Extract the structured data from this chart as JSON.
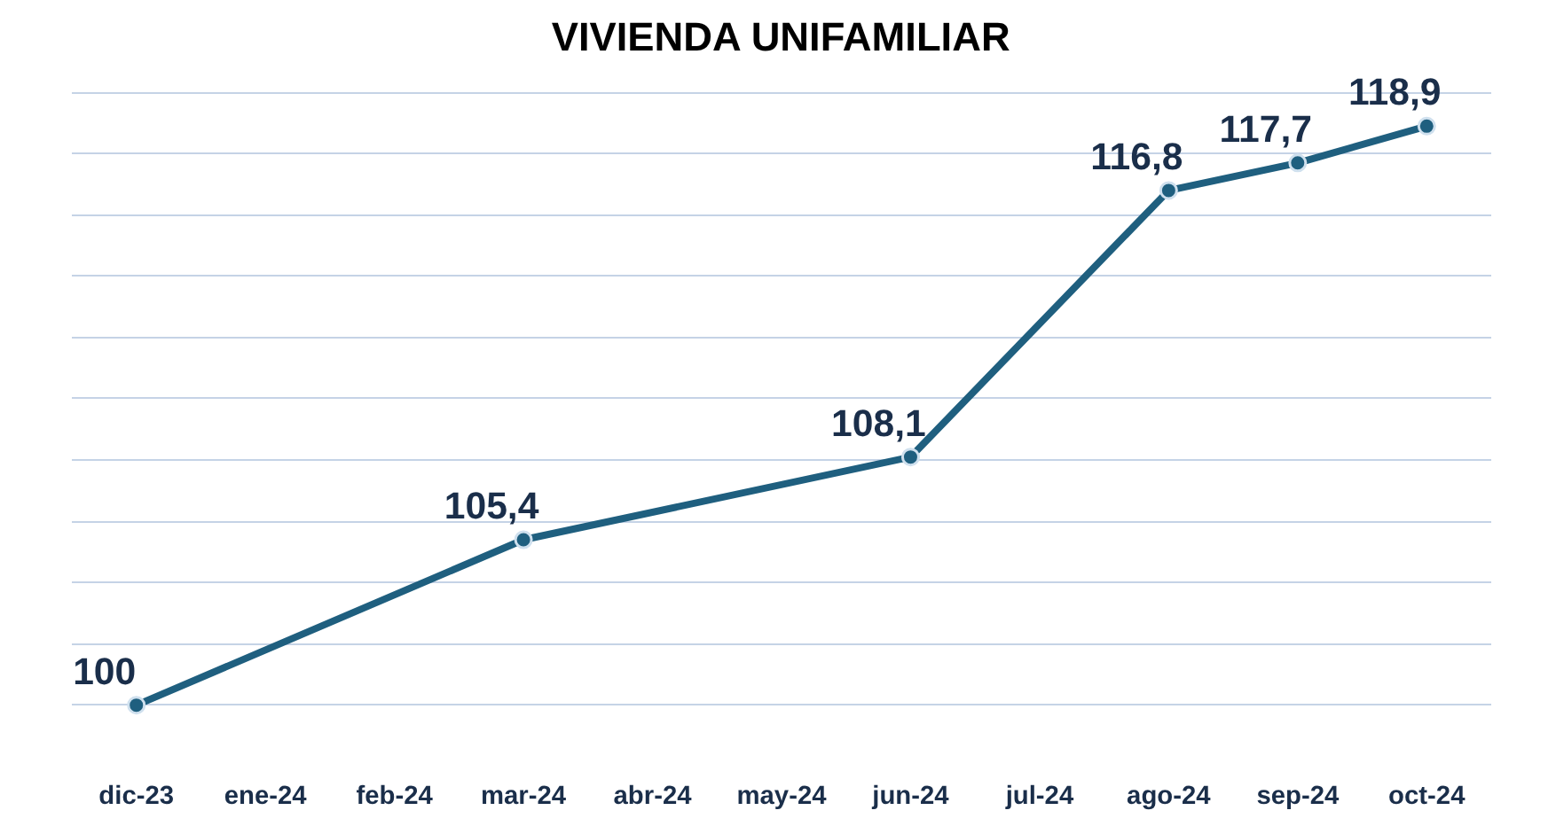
{
  "chart_data": {
    "type": "line",
    "title": "VIVIENDA UNIFAMILIAR",
    "categories": [
      "dic-23",
      "ene-24",
      "feb-24",
      "mar-24",
      "abr-24",
      "may-24",
      "jun-24",
      "jul-24",
      "ago-24",
      "sep-24",
      "oct-24"
    ],
    "series": [
      {
        "color": "#1f5f7f",
        "values": [
          100,
          null,
          null,
          105.4,
          null,
          null,
          108.1,
          null,
          116.8,
          117.7,
          118.9
        ],
        "value_labels": [
          "100",
          null,
          null,
          "105,4",
          null,
          null,
          "108,1",
          null,
          "116,8",
          "117,7",
          "118,9"
        ]
      }
    ],
    "grid": "y",
    "tick_labels": "x",
    "marker": "circle"
  }
}
